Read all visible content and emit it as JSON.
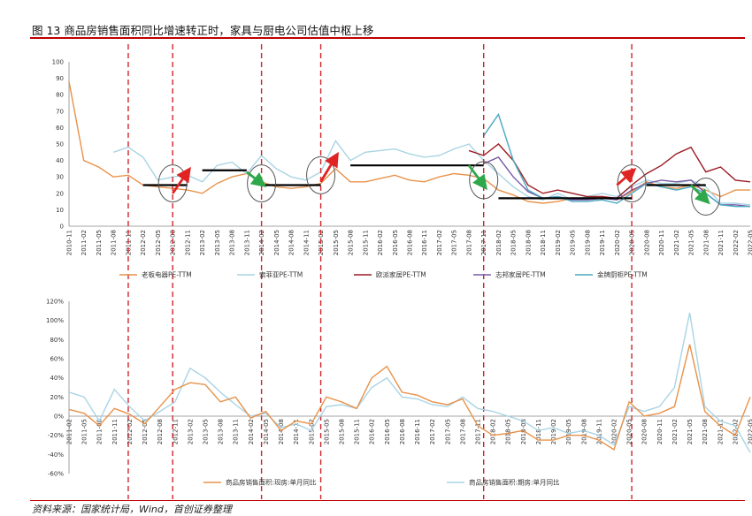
{
  "figure": {
    "title": "图 13 商品房销售面积同比增速转正时，家具与厨电公司估值中枢上移",
    "source": "资料来源：国家统计局，Wind，首创证券整理"
  },
  "colors": {
    "series_orange": "#e8924a",
    "series_lightblue": "#a9d4e4",
    "series_darkred": "#9c1c24",
    "series_purple": "#7a5aa6",
    "series_teal": "#4aa9c2",
    "marker_dashed": "#d0252a",
    "arrow_up": "#e02424",
    "arrow_down": "#2ea84a",
    "level_line": "#000000"
  },
  "chart_data": [
    {
      "type": "line",
      "x": [
        "2010-11",
        "2011-02",
        "2011-05",
        "2011-08",
        "2011-11",
        "2012-02",
        "2012-05",
        "2012-08",
        "2012-11",
        "2013-02",
        "2013-05",
        "2013-08",
        "2013-11",
        "2014-02",
        "2014-05",
        "2014-08",
        "2014-11",
        "2015-02",
        "2015-05",
        "2015-08",
        "2015-11",
        "2016-02",
        "2016-05",
        "2016-08",
        "2016-11",
        "2017-02",
        "2017-05",
        "2017-08",
        "2017-11",
        "2018-02",
        "2018-05",
        "2018-08",
        "2018-11",
        "2019-02",
        "2019-05",
        "2019-08",
        "2019-11",
        "2020-02",
        "2020-05",
        "2020-08",
        "2020-11",
        "2021-02",
        "2021-05",
        "2021-08",
        "2021-11",
        "2022-02",
        "2022-05"
      ],
      "ylim": [
        0,
        100
      ],
      "yticks": [
        "0",
        "10",
        "20",
        "30",
        "40",
        "50",
        "60",
        "70",
        "80",
        "90",
        "100"
      ],
      "series": [
        {
          "name": "老板电器PE-TTM",
          "values": [
            88,
            40,
            36,
            30,
            31,
            25,
            24,
            23,
            22,
            20,
            26,
            30,
            32,
            27,
            24,
            23,
            24,
            26,
            35,
            27,
            27,
            29,
            31,
            28,
            27,
            30,
            32,
            31,
            29,
            22,
            19,
            15,
            14,
            15,
            17,
            17,
            18,
            16,
            21,
            27,
            24,
            23,
            25,
            22,
            18,
            22,
            22
          ]
        },
        {
          "name": "索菲亚PE-TTM",
          "values": [
            null,
            null,
            null,
            45,
            48,
            42,
            28,
            30,
            31,
            27,
            37,
            39,
            32,
            43,
            35,
            30,
            28,
            33,
            52,
            40,
            45,
            46,
            47,
            44,
            42,
            43,
            47,
            50,
            40,
            32,
            24,
            18,
            16,
            20,
            16,
            18,
            20,
            18,
            24,
            28,
            26,
            26,
            28,
            24,
            14,
            14,
            13
          ]
        },
        {
          "name": "欧派家居PE-TTM",
          "values": [
            null,
            null,
            null,
            null,
            null,
            null,
            null,
            null,
            null,
            null,
            null,
            null,
            null,
            null,
            null,
            null,
            null,
            null,
            null,
            null,
            null,
            null,
            null,
            null,
            null,
            null,
            null,
            46,
            43,
            50,
            40,
            25,
            20,
            22,
            20,
            18,
            18,
            17,
            25,
            32,
            37,
            44,
            48,
            33,
            36,
            28,
            27
          ]
        },
        {
          "name": "志邦家居PE-TTM",
          "values": [
            null,
            null,
            null,
            null,
            null,
            null,
            null,
            null,
            null,
            null,
            null,
            null,
            null,
            null,
            null,
            null,
            null,
            null,
            null,
            null,
            null,
            null,
            null,
            null,
            null,
            null,
            null,
            null,
            38,
            42,
            30,
            21,
            17,
            18,
            16,
            16,
            17,
            16,
            22,
            26,
            28,
            27,
            28,
            20,
            13,
            13,
            12
          ]
        },
        {
          "name": "金牌厨柜PE-TTM",
          "values": [
            null,
            null,
            null,
            null,
            null,
            null,
            null,
            null,
            null,
            null,
            null,
            null,
            null,
            null,
            null,
            null,
            null,
            null,
            null,
            null,
            null,
            null,
            null,
            null,
            null,
            null,
            null,
            null,
            55,
            68,
            40,
            22,
            17,
            18,
            15,
            15,
            16,
            14,
            20,
            26,
            24,
            22,
            24,
            20,
            13,
            12,
            12
          ]
        }
      ],
      "level_lines": [
        {
          "x0": "2012-02",
          "x1": "2012-11",
          "y": 25
        },
        {
          "x0": "2013-02",
          "x1": "2013-11",
          "y": 34
        },
        {
          "x0": "2014-02",
          "x1": "2015-02",
          "y": 25
        },
        {
          "x0": "2015-08",
          "x1": "2017-11",
          "y": 37
        },
        {
          "x0": "2018-02",
          "x1": "2020-05",
          "y": 17
        },
        {
          "x0": "2020-08",
          "x1": "2021-08",
          "y": 25
        }
      ],
      "arrows": [
        {
          "dir": "up",
          "x0": "2012-08",
          "y0": 20,
          "x1": "2012-11",
          "y1": 33
        },
        {
          "dir": "down",
          "x0": "2013-11",
          "y0": 33,
          "x1": "2014-02",
          "y1": 26
        },
        {
          "dir": "up",
          "x0": "2015-02",
          "y0": 27,
          "x1": "2015-05",
          "y1": 42
        },
        {
          "dir": "down",
          "x0": "2017-08",
          "y0": 37,
          "x1": "2017-11",
          "y1": 25
        },
        {
          "dir": "up",
          "x0": "2020-02",
          "y0": 25,
          "x1": "2020-05",
          "y1": 33
        },
        {
          "dir": "down",
          "x0": "2021-05",
          "y0": 25,
          "x1": "2021-08",
          "y1": 16
        }
      ],
      "circles": [
        {
          "x": "2012-08",
          "y": 26
        },
        {
          "x": "2014-02",
          "y": 26
        },
        {
          "x": "2015-02",
          "y": 31
        },
        {
          "x": "2017-11",
          "y": 28
        },
        {
          "x": "2020-05",
          "y": 26
        },
        {
          "x": "2021-08",
          "y": 18
        }
      ],
      "vlines": [
        "2011-11",
        "2012-08",
        "2014-02",
        "2015-02",
        "2017-11",
        "2020-05"
      ]
    },
    {
      "type": "line",
      "x": [
        "2011-02",
        "2011-05",
        "2011-08",
        "2011-11",
        "2012-02",
        "2012-05",
        "2012-08",
        "2012-11",
        "2013-02",
        "2013-05",
        "2013-08",
        "2013-11",
        "2014-02",
        "2014-05",
        "2014-08",
        "2014-11",
        "2015-02",
        "2015-05",
        "2015-08",
        "2015-11",
        "2016-02",
        "2016-05",
        "2016-08",
        "2016-11",
        "2017-02",
        "2017-05",
        "2017-08",
        "2017-11",
        "2018-02",
        "2018-05",
        "2018-08",
        "2018-11",
        "2019-02",
        "2019-05",
        "2019-08",
        "2019-11",
        "2020-02",
        "2020-05",
        "2020-08",
        "2020-11",
        "2021-02",
        "2021-05",
        "2021-08",
        "2021-11",
        "2022-02",
        "2022-05"
      ],
      "ylim": [
        -60,
        120
      ],
      "yticks": [
        "-60%",
        "-40%",
        "-20%",
        "0%",
        "20%",
        "40%",
        "60%",
        "80%",
        "100%",
        "120%"
      ],
      "series": [
        {
          "name": "商品房销售面积:现房:单月同比",
          "values": [
            7,
            3,
            -10,
            8,
            2,
            -8,
            10,
            28,
            35,
            33,
            15,
            20,
            -2,
            5,
            -15,
            -5,
            -8,
            20,
            15,
            8,
            40,
            52,
            25,
            22,
            15,
            12,
            18,
            -10,
            -20,
            -18,
            -15,
            -25,
            -25,
            -20,
            -20,
            -25,
            -35,
            15,
            0,
            3,
            10,
            75,
            5,
            -10,
            -20,
            20
          ]
        },
        {
          "name": "商品房销售面积:期房:单月同比",
          "values": [
            25,
            20,
            -5,
            28,
            10,
            -5,
            5,
            15,
            50,
            40,
            25,
            12,
            0,
            3,
            -12,
            -8,
            -15,
            10,
            12,
            8,
            30,
            40,
            20,
            18,
            12,
            10,
            20,
            8,
            5,
            0,
            -5,
            -15,
            -12,
            -18,
            -15,
            -20,
            -30,
            10,
            5,
            10,
            30,
            108,
            10,
            -5,
            -10,
            -38
          ]
        }
      ],
      "vlines": [
        "2011-11",
        "2012-08",
        "2014-02",
        "2015-02",
        "2017-11",
        "2020-05"
      ]
    }
  ]
}
